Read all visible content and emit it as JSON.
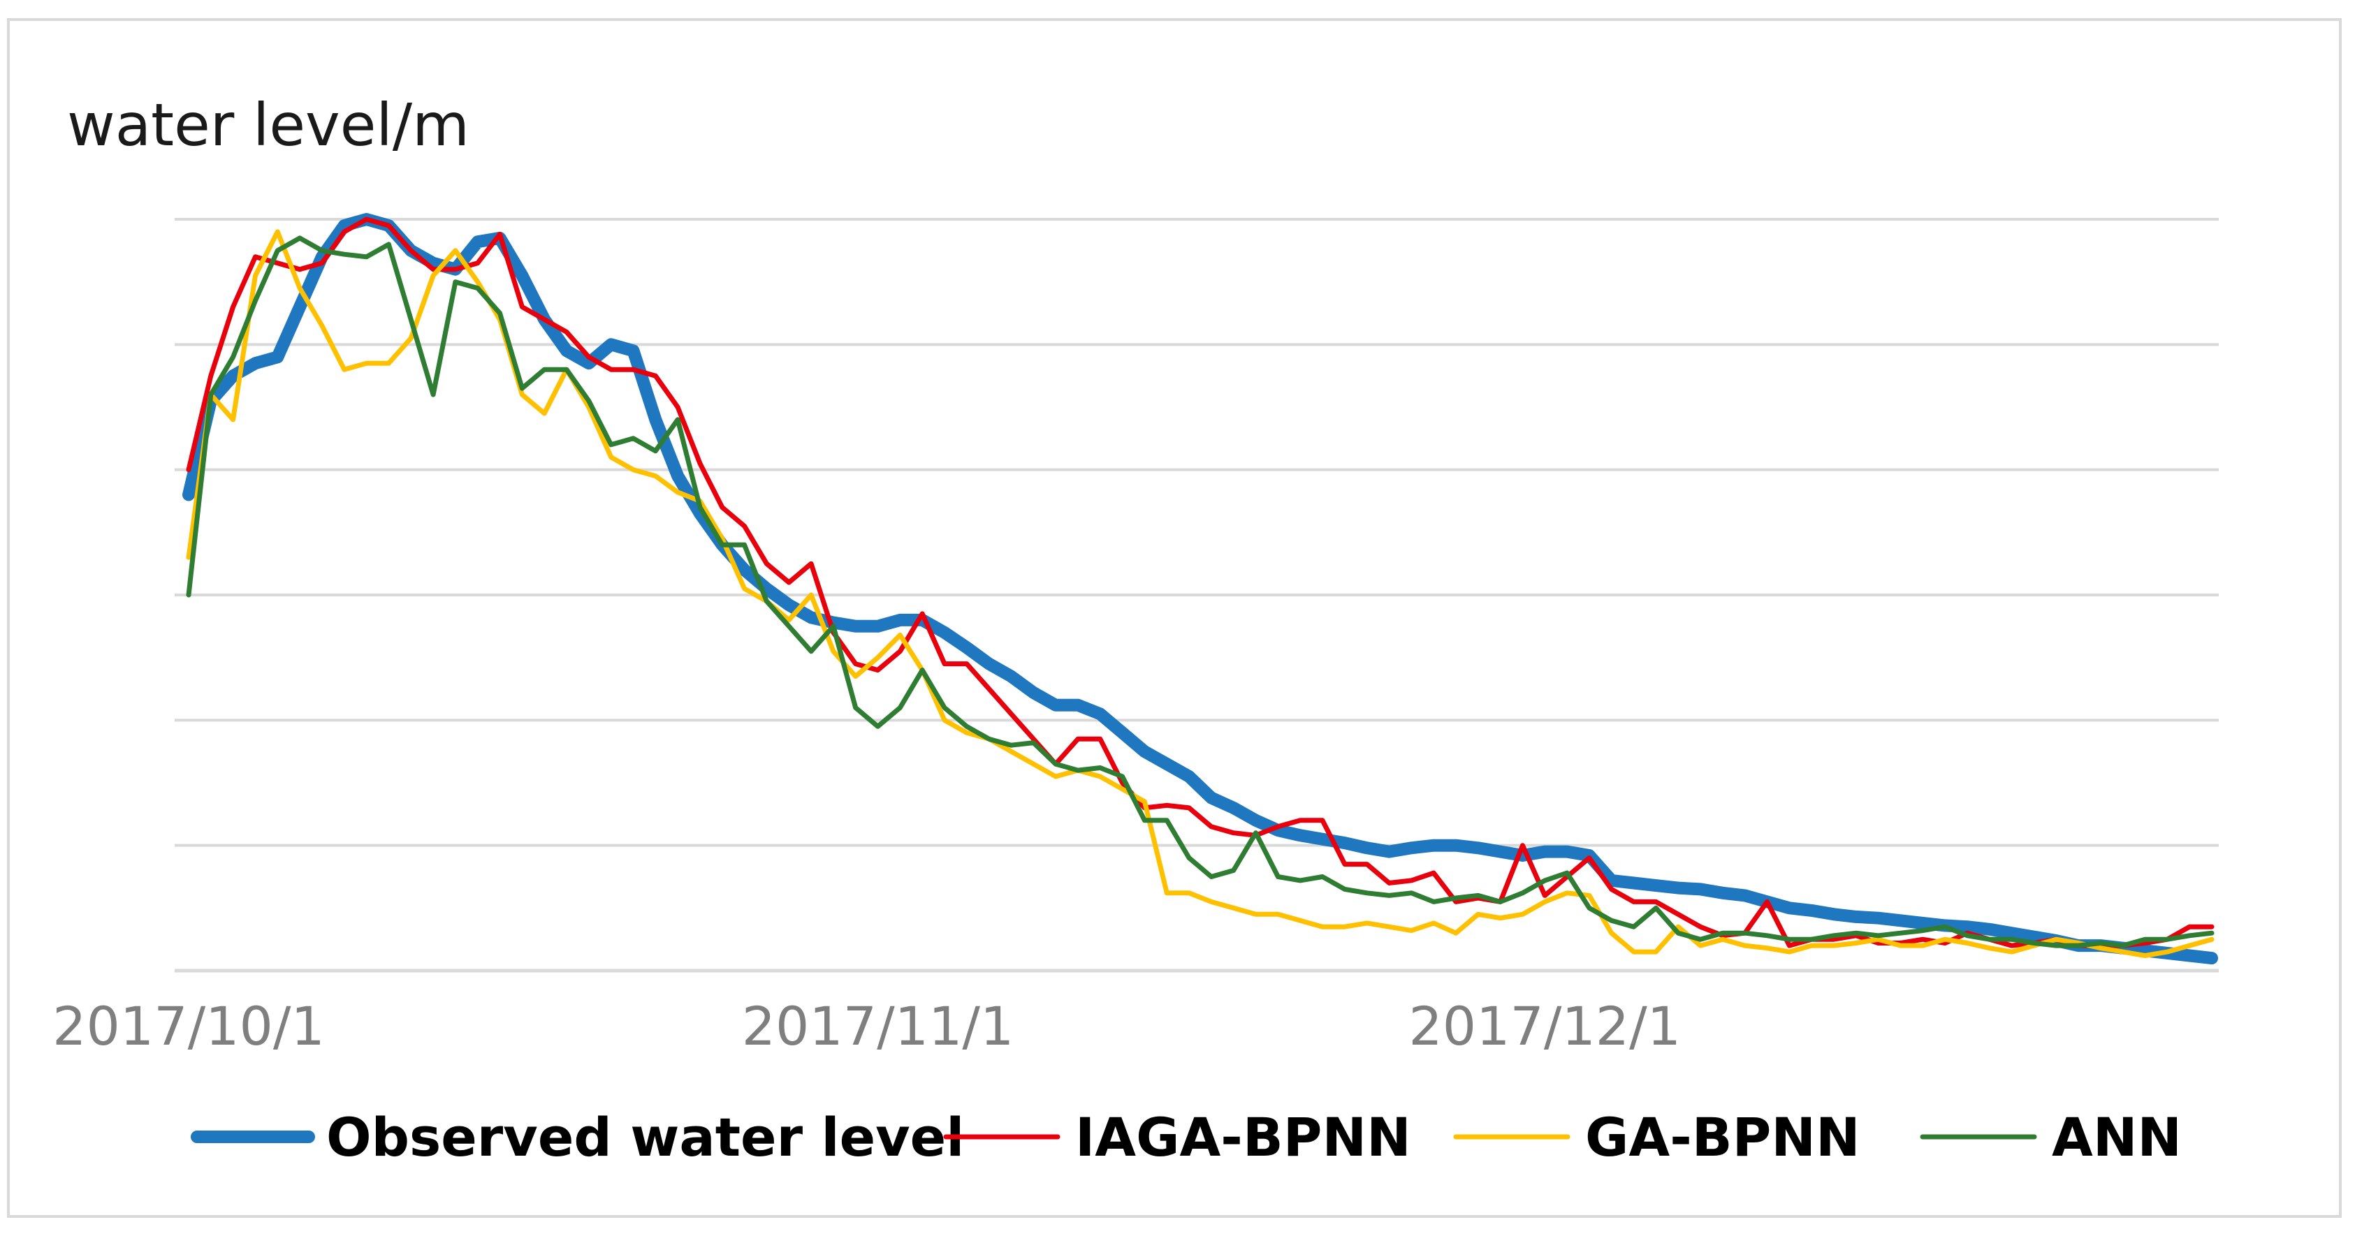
{
  "chart_data": {
    "type": "line",
    "title": "",
    "ylabel": "water level/m",
    "xlabel": "",
    "x_tick_labels": [
      "2017/10/1",
      "2017/11/1",
      "2017/12/1"
    ],
    "x_tick_index": [
      0,
      31,
      61
    ],
    "n_points": 92,
    "ylim": [
      0,
      6
    ],
    "y_tick_labels_visible": false,
    "grid": true,
    "legend": {
      "placement": "bottom"
    },
    "series": [
      {
        "name": "Observed water level",
        "color": "#1f77c0",
        "values": [
          3.8,
          4.55,
          4.75,
          4.85,
          4.9,
          5.3,
          5.7,
          5.95,
          6.0,
          5.95,
          5.75,
          5.65,
          5.6,
          5.82,
          5.85,
          5.55,
          5.2,
          4.95,
          4.85,
          5.0,
          4.95,
          4.4,
          3.95,
          3.65,
          3.4,
          3.2,
          3.05,
          2.92,
          2.82,
          2.78,
          2.75,
          2.75,
          2.8,
          2.8,
          2.7,
          2.58,
          2.45,
          2.35,
          2.22,
          2.12,
          2.12,
          2.05,
          1.9,
          1.75,
          1.65,
          1.55,
          1.38,
          1.3,
          1.2,
          1.12,
          1.08,
          1.05,
          1.02,
          0.98,
          0.95,
          0.98,
          1.0,
          1.0,
          0.98,
          0.95,
          0.92,
          0.95,
          0.95,
          0.92,
          0.72,
          0.7,
          0.68,
          0.66,
          0.65,
          0.62,
          0.6,
          0.55,
          0.5,
          0.48,
          0.45,
          0.43,
          0.42,
          0.4,
          0.38,
          0.36,
          0.35,
          0.33,
          0.3,
          0.27,
          0.24,
          0.2,
          0.2,
          0.18,
          0.16,
          0.14,
          0.12,
          0.1
        ]
      },
      {
        "name": "IAGA-BPNN",
        "color": "#e8000c",
        "values": [
          4.0,
          4.75,
          5.3,
          5.7,
          5.65,
          5.6,
          5.65,
          5.9,
          6.0,
          5.95,
          5.75,
          5.6,
          5.6,
          5.65,
          5.88,
          5.3,
          5.2,
          5.1,
          4.9,
          4.8,
          4.8,
          4.75,
          4.5,
          4.05,
          3.7,
          3.55,
          3.25,
          3.1,
          3.25,
          2.7,
          2.45,
          2.4,
          2.55,
          2.85,
          2.45,
          2.45,
          2.25,
          2.05,
          1.85,
          1.65,
          1.85,
          1.85,
          1.5,
          1.3,
          1.32,
          1.3,
          1.15,
          1.1,
          1.08,
          1.15,
          1.2,
          1.2,
          0.85,
          0.85,
          0.7,
          0.72,
          0.78,
          0.55,
          0.58,
          0.55,
          1.0,
          0.6,
          0.75,
          0.9,
          0.65,
          0.55,
          0.55,
          0.45,
          0.35,
          0.28,
          0.3,
          0.55,
          0.2,
          0.25,
          0.25,
          0.28,
          0.22,
          0.22,
          0.25,
          0.22,
          0.3,
          0.25,
          0.2,
          0.22,
          0.25,
          0.2,
          0.2,
          0.2,
          0.22,
          0.25,
          0.35,
          0.35
        ]
      },
      {
        "name": "GA-BPNN",
        "color": "#ffc000",
        "values": [
          3.3,
          4.6,
          4.4,
          5.55,
          5.9,
          5.45,
          5.15,
          4.8,
          4.85,
          4.85,
          5.05,
          5.55,
          5.75,
          5.5,
          5.2,
          4.6,
          4.45,
          4.8,
          4.5,
          4.1,
          4.0,
          3.95,
          3.82,
          3.75,
          3.45,
          3.05,
          2.95,
          2.8,
          3.0,
          2.55,
          2.35,
          2.5,
          2.68,
          2.4,
          2.0,
          1.9,
          1.85,
          1.75,
          1.65,
          1.55,
          1.6,
          1.55,
          1.45,
          1.35,
          0.62,
          0.62,
          0.55,
          0.5,
          0.45,
          0.45,
          0.4,
          0.35,
          0.35,
          0.38,
          0.35,
          0.32,
          0.38,
          0.3,
          0.45,
          0.42,
          0.45,
          0.55,
          0.62,
          0.6,
          0.3,
          0.15,
          0.15,
          0.35,
          0.2,
          0.25,
          0.2,
          0.18,
          0.15,
          0.2,
          0.2,
          0.22,
          0.25,
          0.2,
          0.2,
          0.25,
          0.22,
          0.18,
          0.15,
          0.2,
          0.25,
          0.22,
          0.18,
          0.15,
          0.12,
          0.15,
          0.2,
          0.25
        ]
      },
      {
        "name": "ANN",
        "color": "#2e7d32",
        "values": [
          3.0,
          4.6,
          4.9,
          5.35,
          5.75,
          5.85,
          5.75,
          5.72,
          5.7,
          5.8,
          5.2,
          4.6,
          5.5,
          5.45,
          5.25,
          4.65,
          4.8,
          4.8,
          4.55,
          4.2,
          4.25,
          4.15,
          4.4,
          3.7,
          3.4,
          3.4,
          2.95,
          2.75,
          2.55,
          2.75,
          2.1,
          1.95,
          2.1,
          2.4,
          2.1,
          1.95,
          1.85,
          1.8,
          1.82,
          1.65,
          1.6,
          1.62,
          1.55,
          1.2,
          1.2,
          0.9,
          0.75,
          0.8,
          1.1,
          0.75,
          0.72,
          0.75,
          0.65,
          0.62,
          0.6,
          0.62,
          0.55,
          0.58,
          0.6,
          0.55,
          0.62,
          0.72,
          0.78,
          0.5,
          0.4,
          0.35,
          0.5,
          0.3,
          0.25,
          0.3,
          0.3,
          0.28,
          0.25,
          0.25,
          0.28,
          0.3,
          0.28,
          0.3,
          0.32,
          0.35,
          0.28,
          0.25,
          0.25,
          0.22,
          0.2,
          0.2,
          0.22,
          0.2,
          0.25,
          0.25,
          0.28,
          0.3
        ]
      }
    ]
  }
}
